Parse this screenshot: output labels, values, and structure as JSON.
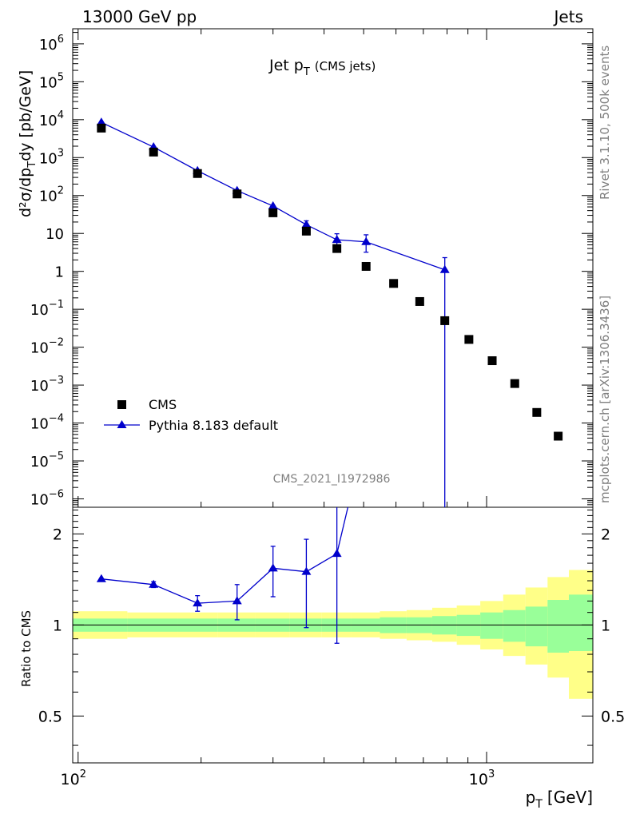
{
  "header": {
    "left": "13000 GeV pp",
    "right": "Jets"
  },
  "side_labels": {
    "rivet": "Rivet 3.1.10,  500k events",
    "mcplots": "mcplots.cern.ch [arXiv:1306.3436]"
  },
  "colors": {
    "mc": "#0000cc",
    "data": "#000000",
    "band_inner": "#99ff99",
    "band_outer": "#ffff88",
    "side_text": "#7f7f7f"
  },
  "chart_data": {
    "type": "scatter",
    "title_main": "Jet p",
    "title_sub": "T",
    "title_suffix": "(CMS jets)",
    "analysis_id": "CMS_2021_I1972986",
    "xlabel": "p",
    "xlabel_sub": "T",
    "xlabel_unit": "[GeV]",
    "ylabel": "d²σ/dp",
    "ylabel_sub": "T",
    "ylabel_suffix": "dy [pb/GeV]",
    "ratio_ylabel": "Ratio to CMS",
    "xlim": [
      97,
      1820
    ],
    "xscale": "log",
    "ylim": [
      6e-07,
      2500000.0
    ],
    "yscale": "log",
    "ratio_ylim": [
      0.35,
      2.45
    ],
    "legend_position": "lower-left",
    "x_tick_labels": [
      {
        "mantissa": "10",
        "exp": "2",
        "value": 100
      },
      {
        "mantissa": "10",
        "exp": "3",
        "value": 1000
      }
    ],
    "y_tick_labels": [
      {
        "mantissa": "10",
        "exp": "6",
        "value": 1000000.0
      },
      {
        "mantissa": "10",
        "exp": "5",
        "value": 100000.0
      },
      {
        "mantissa": "10",
        "exp": "4",
        "value": 10000.0
      },
      {
        "mantissa": "10",
        "exp": "3",
        "value": 1000.0
      },
      {
        "mantissa": "10",
        "exp": "2",
        "value": 100
      },
      {
        "mantissa": "10",
        "exp": "",
        "value": 10
      },
      {
        "mantissa": "1",
        "exp": "",
        "value": 1
      },
      {
        "mantissa": "10",
        "exp": "−1",
        "value": 0.1
      },
      {
        "mantissa": "10",
        "exp": "−2",
        "value": 0.01
      },
      {
        "mantissa": "10",
        "exp": "−3",
        "value": 0.001
      },
      {
        "mantissa": "10",
        "exp": "−4",
        "value": 0.0001
      },
      {
        "mantissa": "10",
        "exp": "−5",
        "value": 1e-05
      },
      {
        "mantissa": "10",
        "exp": "−6",
        "value": 1e-06
      }
    ],
    "ratio_tick_labels": [
      {
        "label": "2",
        "value": 2
      },
      {
        "label": "1",
        "value": 1
      },
      {
        "label": "0.5",
        "value": 0.5
      }
    ],
    "series": [
      {
        "name": "CMS",
        "marker": "square",
        "x": [
          114,
          153,
          196,
          245,
          300,
          362,
          430,
          507,
          592,
          686,
          790,
          905,
          1032,
          1172,
          1327,
          1497
        ],
        "y": [
          6000,
          1400,
          380,
          110,
          35,
          11.5,
          4.0,
          1.35,
          0.48,
          0.16,
          0.05,
          0.016,
          0.0044,
          0.0011,
          0.00019,
          4.5e-05
        ]
      },
      {
        "name": "Pythia 8.183 default",
        "marker": "triangle",
        "x": [
          114,
          153,
          196,
          245,
          300,
          362,
          430,
          507,
          790
        ],
        "y": [
          8500,
          1900,
          450,
          135,
          53,
          17,
          6.8,
          6.0,
          1.1
        ],
        "y_err_low": [
          0,
          0,
          0,
          0,
          0,
          4,
          2.3,
          2.8,
          1.1
        ],
        "y_err_high": [
          0,
          0,
          0,
          0,
          0,
          4.5,
          3,
          3.2,
          1.2
        ],
        "ratio": [
          1.42,
          1.36,
          1.18,
          1.2,
          1.54,
          1.5,
          1.72,
          4.4,
          22
        ],
        "ratio_err_low": [
          0,
          0.03,
          0.07,
          0.16,
          0.3,
          0.52,
          0.85,
          0,
          0
        ],
        "ratio_err_high": [
          0,
          0.03,
          0.07,
          0.16,
          0.28,
          0.42,
          0.8,
          0,
          0
        ]
      }
    ],
    "ratio_bands": {
      "edges": [
        97,
        132,
        175,
        220,
        272,
        330,
        395,
        467,
        548,
        637,
        736,
        845,
        965,
        1098,
        1245,
        1410,
        1590,
        1820
      ],
      "inner_low": [
        0.95,
        0.95,
        0.95,
        0.95,
        0.95,
        0.95,
        0.95,
        0.95,
        0.94,
        0.94,
        0.93,
        0.92,
        0.9,
        0.88,
        0.85,
        0.81,
        0.82
      ],
      "inner_high": [
        1.05,
        1.05,
        1.05,
        1.05,
        1.05,
        1.05,
        1.05,
        1.05,
        1.06,
        1.06,
        1.07,
        1.08,
        1.1,
        1.12,
        1.15,
        1.21,
        1.26
      ],
      "outer_low": [
        0.9,
        0.91,
        0.91,
        0.91,
        0.91,
        0.91,
        0.91,
        0.91,
        0.9,
        0.89,
        0.88,
        0.86,
        0.83,
        0.79,
        0.74,
        0.67,
        0.57
      ],
      "outer_high": [
        1.11,
        1.1,
        1.1,
        1.1,
        1.1,
        1.1,
        1.1,
        1.1,
        1.11,
        1.12,
        1.14,
        1.16,
        1.2,
        1.26,
        1.33,
        1.44,
        1.52
      ]
    }
  }
}
